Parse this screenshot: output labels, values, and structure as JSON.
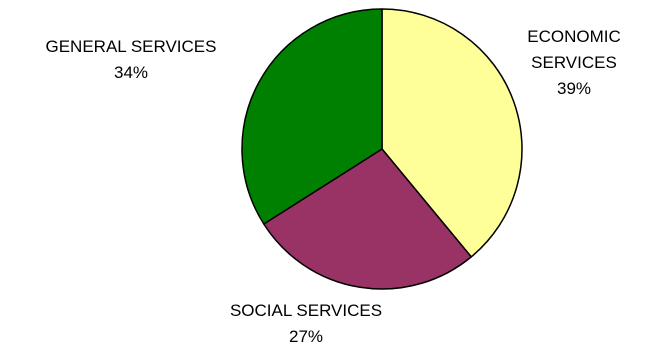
{
  "chart_data": {
    "type": "pie",
    "slices": [
      {
        "label": [
          "ECONOMIC",
          "SERVICES"
        ],
        "value": 39,
        "value_label": "39%",
        "color": "#ffff99"
      },
      {
        "label": [
          "SOCIAL SERVICES"
        ],
        "value": 27,
        "value_label": "27%",
        "color": "#993366"
      },
      {
        "label": [
          "GENERAL SERVICES"
        ],
        "value": 34,
        "value_label": "34%",
        "color": "#008000"
      }
    ],
    "start_angle_deg": 0,
    "direction": "clockwise",
    "legend": "none"
  }
}
